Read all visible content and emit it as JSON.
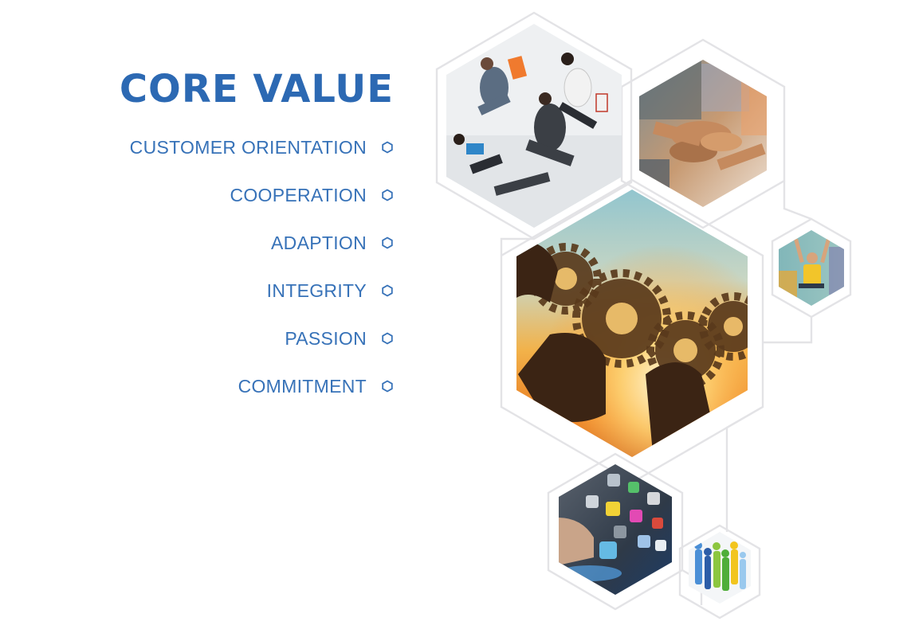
{
  "heading": "CORE VALUE",
  "values": [
    {
      "label": "CUSTOMER ORIENTATION",
      "icon": "hexagon-bullet-icon"
    },
    {
      "label": "COOPERATION",
      "icon": "hexagon-bullet-icon"
    },
    {
      "label": "ADAPTION",
      "icon": "hexagon-bullet-icon"
    },
    {
      "label": "INTEGRITY",
      "icon": "hexagon-bullet-icon"
    },
    {
      "label": "PASSION",
      "icon": "hexagon-bullet-icon"
    },
    {
      "label": "COMMITMENT",
      "icon": "hexagon-bullet-icon"
    }
  ],
  "colors": {
    "accent": "#2c69b3",
    "outline": "#e3e3e6"
  },
  "images": [
    "jumping-business-team-photo",
    "stacked-hands-photo",
    "hands-holding-gears-photo",
    "man-cheering-at-laptop-photo",
    "digital-app-icons-photo",
    "people-silhouettes-photo"
  ]
}
